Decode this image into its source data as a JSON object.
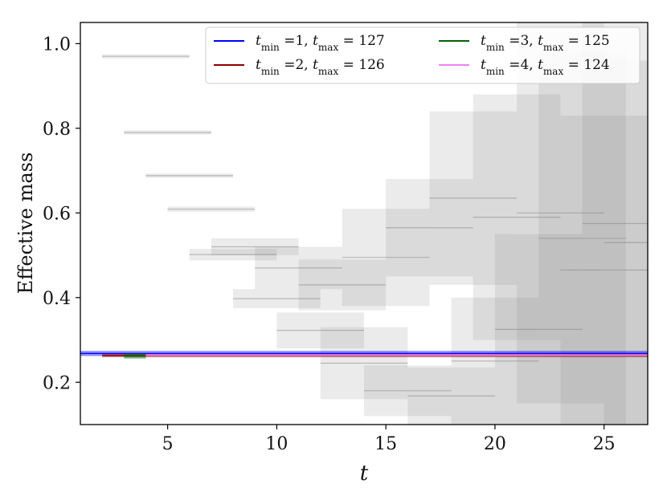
{
  "chart_data": {
    "type": "line",
    "title": "",
    "xlabel": "t",
    "ylabel": "Effective mass",
    "xlim": [
      1,
      27
    ],
    "ylim": [
      0.1,
      1.05
    ],
    "x_ticks": [
      "5",
      "10",
      "15",
      "20",
      "25"
    ],
    "x_tick_values": [
      5,
      10,
      15,
      20,
      25
    ],
    "y_ticks": [
      "0.2",
      "0.4",
      "0.6",
      "0.8",
      "1.0"
    ],
    "y_tick_values": [
      0.2,
      0.4,
      0.6,
      0.8,
      1.0
    ],
    "legend_placement": "top-right",
    "series": [
      {
        "name": "t_min = 1, t_max = 127",
        "label_tmin": "1",
        "label_tmax": "127",
        "color": "#0000ff",
        "x_start": 1,
        "x_end": 27,
        "y": 0.268,
        "band": 0.006
      },
      {
        "name": "t_min = 2, t_max = 126",
        "label_tmin": "2",
        "label_tmax": "126",
        "color": "#8b0000",
        "x_start": 2,
        "x_end": 27,
        "y": 0.263,
        "band": 0.004
      },
      {
        "name": "t_min = 3, t_max = 125",
        "label_tmin": "3",
        "label_tmax": "125",
        "color": "#006400",
        "x_start": 3,
        "x_end": 4,
        "y": 0.262,
        "band": 0.006
      },
      {
        "name": "t_min = 4, t_max = 124",
        "label_tmin": "4",
        "label_tmax": "124",
        "color": "#ee82ee",
        "x_start": 4,
        "x_end": 27,
        "y": 0.264,
        "band": 0.003
      }
    ],
    "background_boxes": [
      {
        "x0": 2,
        "x1": 6,
        "y0": 0.965,
        "y1": 0.975
      },
      {
        "x0": 3,
        "x1": 7,
        "y0": 0.785,
        "y1": 0.795
      },
      {
        "x0": 4,
        "x1": 8,
        "y0": 0.683,
        "y1": 0.693
      },
      {
        "x0": 5,
        "x1": 9,
        "y0": 0.603,
        "y1": 0.615
      },
      {
        "x0": 6,
        "x1": 10,
        "y0": 0.488,
        "y1": 0.515
      },
      {
        "x0": 7,
        "x1": 11,
        "y0": 0.5,
        "y1": 0.54
      },
      {
        "x0": 8,
        "x1": 12,
        "y0": 0.375,
        "y1": 0.42
      },
      {
        "x0": 9,
        "x1": 13,
        "y0": 0.42,
        "y1": 0.52
      },
      {
        "x0": 10,
        "x1": 14,
        "y0": 0.28,
        "y1": 0.365
      },
      {
        "x0": 11,
        "x1": 15,
        "y0": 0.37,
        "y1": 0.49
      },
      {
        "x0": 12,
        "x1": 16,
        "y0": 0.16,
        "y1": 0.33
      },
      {
        "x0": 13,
        "x1": 17,
        "y0": 0.38,
        "y1": 0.61
      },
      {
        "x0": 14,
        "x1": 18,
        "y0": 0.12,
        "y1": 0.24
      },
      {
        "x0": 15,
        "x1": 19,
        "y0": 0.45,
        "y1": 0.68
      },
      {
        "x0": 16,
        "x1": 20,
        "y0": 0.1,
        "y1": 0.235
      },
      {
        "x0": 17,
        "x1": 21,
        "y0": 0.43,
        "y1": 0.84
      },
      {
        "x0": 18,
        "x1": 22,
        "y0": 0.1,
        "y1": 0.4
      },
      {
        "x0": 19,
        "x1": 23,
        "y0": 0.3,
        "y1": 0.88
      },
      {
        "x0": 20,
        "x1": 24,
        "y0": 0.1,
        "y1": 0.55
      },
      {
        "x0": 21,
        "x1": 25,
        "y0": 0.15,
        "y1": 1.05
      },
      {
        "x0": 22,
        "x1": 26,
        "y0": 0.1,
        "y1": 0.98
      },
      {
        "x0": 23,
        "x1": 27,
        "y0": 0.1,
        "y1": 0.83
      },
      {
        "x0": 24,
        "x1": 27,
        "y0": 0.1,
        "y1": 1.05
      },
      {
        "x0": 25,
        "x1": 27,
        "y0": 0.1,
        "y1": 0.96
      }
    ]
  }
}
